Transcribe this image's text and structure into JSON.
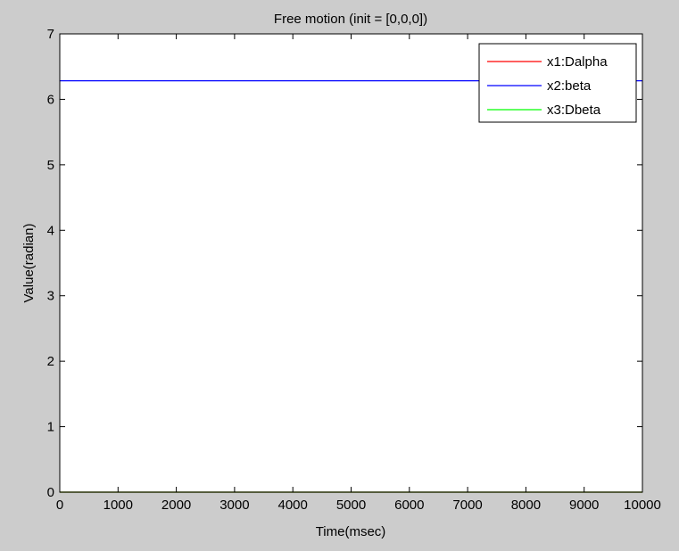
{
  "chart_data": {
    "type": "line",
    "title": "Free motion (init = [0,0,0])",
    "xlabel": "Time(msec)",
    "ylabel": "Value(radian)",
    "xlim": [
      0,
      10000
    ],
    "ylim": [
      0,
      7
    ],
    "xticks": [
      0,
      1000,
      2000,
      3000,
      4000,
      5000,
      6000,
      7000,
      8000,
      9000,
      10000
    ],
    "yticks": [
      0,
      1,
      2,
      3,
      4,
      5,
      6,
      7
    ],
    "grid": false,
    "legend_position": "top-right",
    "series": [
      {
        "name": "x1:Dalpha",
        "color": "#ff0000",
        "x": [
          0,
          10000
        ],
        "y": [
          0,
          0
        ]
      },
      {
        "name": "x2:beta",
        "color": "#0000ff",
        "x": [
          0,
          10000
        ],
        "y": [
          6.2832,
          6.2832
        ]
      },
      {
        "name": "x3:Dbeta",
        "color": "#00ff00",
        "x": [
          0,
          10000
        ],
        "y": [
          0,
          0
        ]
      }
    ]
  }
}
